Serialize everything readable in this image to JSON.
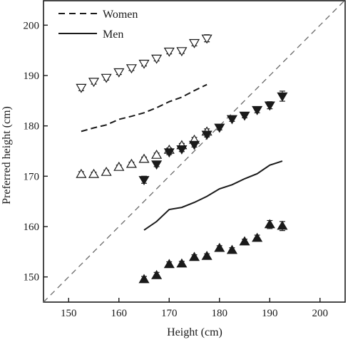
{
  "chart_data": {
    "type": "scatter",
    "xlabel": "Height (cm)",
    "ylabel": "Preferred height (cm)",
    "xlim": [
      145,
      205
    ],
    "ylim": [
      145,
      205
    ],
    "xticks": [
      150,
      160,
      170,
      180,
      190,
      200
    ],
    "yticks": [
      150,
      160,
      170,
      180,
      190,
      200
    ],
    "grid": false,
    "legend_position": "top-left",
    "legend": [
      {
        "label": "Women",
        "style": "dashed"
      },
      {
        "label": "Men",
        "style": "solid"
      }
    ],
    "reference_line": {
      "style": "dashed",
      "from": [
        145,
        145
      ],
      "to": [
        205,
        205
      ]
    },
    "line_series": [
      {
        "style": "dashed",
        "x": [
          152.5,
          155,
          157.5,
          160,
          162.5,
          165,
          167.5,
          170,
          172.5,
          175,
          177.5
        ],
        "y": [
          178.9,
          179.6,
          180.2,
          181.3,
          181.9,
          182.6,
          183.6,
          184.8,
          185.7,
          187.0,
          188.2
        ]
      },
      {
        "style": "solid",
        "x": [
          165,
          167.5,
          170,
          172.5,
          175,
          177.5,
          180,
          182.5,
          185,
          187.5,
          190,
          192.5
        ],
        "y": [
          159.3,
          161.0,
          163.4,
          163.8,
          164.8,
          166.0,
          167.5,
          168.3,
          169.5,
          170.5,
          172.2,
          173.0
        ]
      }
    ],
    "marker_series": [
      {
        "marker": "open-triangle-down",
        "x": [
          152.5,
          155,
          157.5,
          160,
          162.5,
          165,
          167.5,
          170,
          172.5,
          175,
          177.5
        ],
        "y": [
          187.6,
          188.8,
          189.6,
          190.7,
          191.5,
          192.4,
          193.4,
          194.8,
          194.9,
          196.5,
          197.4
        ],
        "err": [
          0.6,
          0.5,
          0.5,
          0.5,
          0.5,
          0.5,
          0.5,
          0.5,
          0.5,
          0.6,
          0.7
        ]
      },
      {
        "marker": "open-triangle-up",
        "x": [
          152.5,
          155,
          157.5,
          160,
          162.5,
          165,
          167.5,
          170,
          172.5,
          175,
          177.5
        ],
        "y": [
          170.4,
          170.4,
          170.8,
          171.8,
          172.4,
          173.4,
          174.2,
          175.2,
          176.1,
          177.2,
          178.8
        ],
        "err": [
          0.5,
          0.4,
          0.4,
          0.4,
          0.4,
          0.4,
          0.4,
          0.4,
          0.4,
          0.5,
          0.6
        ]
      },
      {
        "marker": "filled-triangle-down",
        "x": [
          165,
          167.5,
          170,
          172.5,
          175,
          177.5,
          180,
          182.5,
          185,
          187.5,
          190,
          192.5
        ],
        "y": [
          169.3,
          172.4,
          174.8,
          175.4,
          176.3,
          178.3,
          179.7,
          181.4,
          182.1,
          183.2,
          184.1,
          185.9
        ],
        "err": [
          0.7,
          0.5,
          0.5,
          0.5,
          0.5,
          0.5,
          0.5,
          0.5,
          0.5,
          0.6,
          0.7,
          1.0
        ]
      },
      {
        "marker": "filled-triangle-up",
        "x": [
          165,
          167.5,
          170,
          172.5,
          175,
          177.5,
          180,
          182.5,
          185,
          187.5,
          190,
          192.5
        ],
        "y": [
          149.5,
          150.3,
          152.5,
          152.6,
          153.9,
          154.1,
          155.7,
          155.3,
          157.0,
          157.7,
          160.4,
          160.1
        ],
        "err": [
          0.6,
          0.6,
          0.5,
          0.5,
          0.5,
          0.5,
          0.5,
          0.5,
          0.5,
          0.6,
          0.8,
          0.9
        ]
      }
    ]
  }
}
